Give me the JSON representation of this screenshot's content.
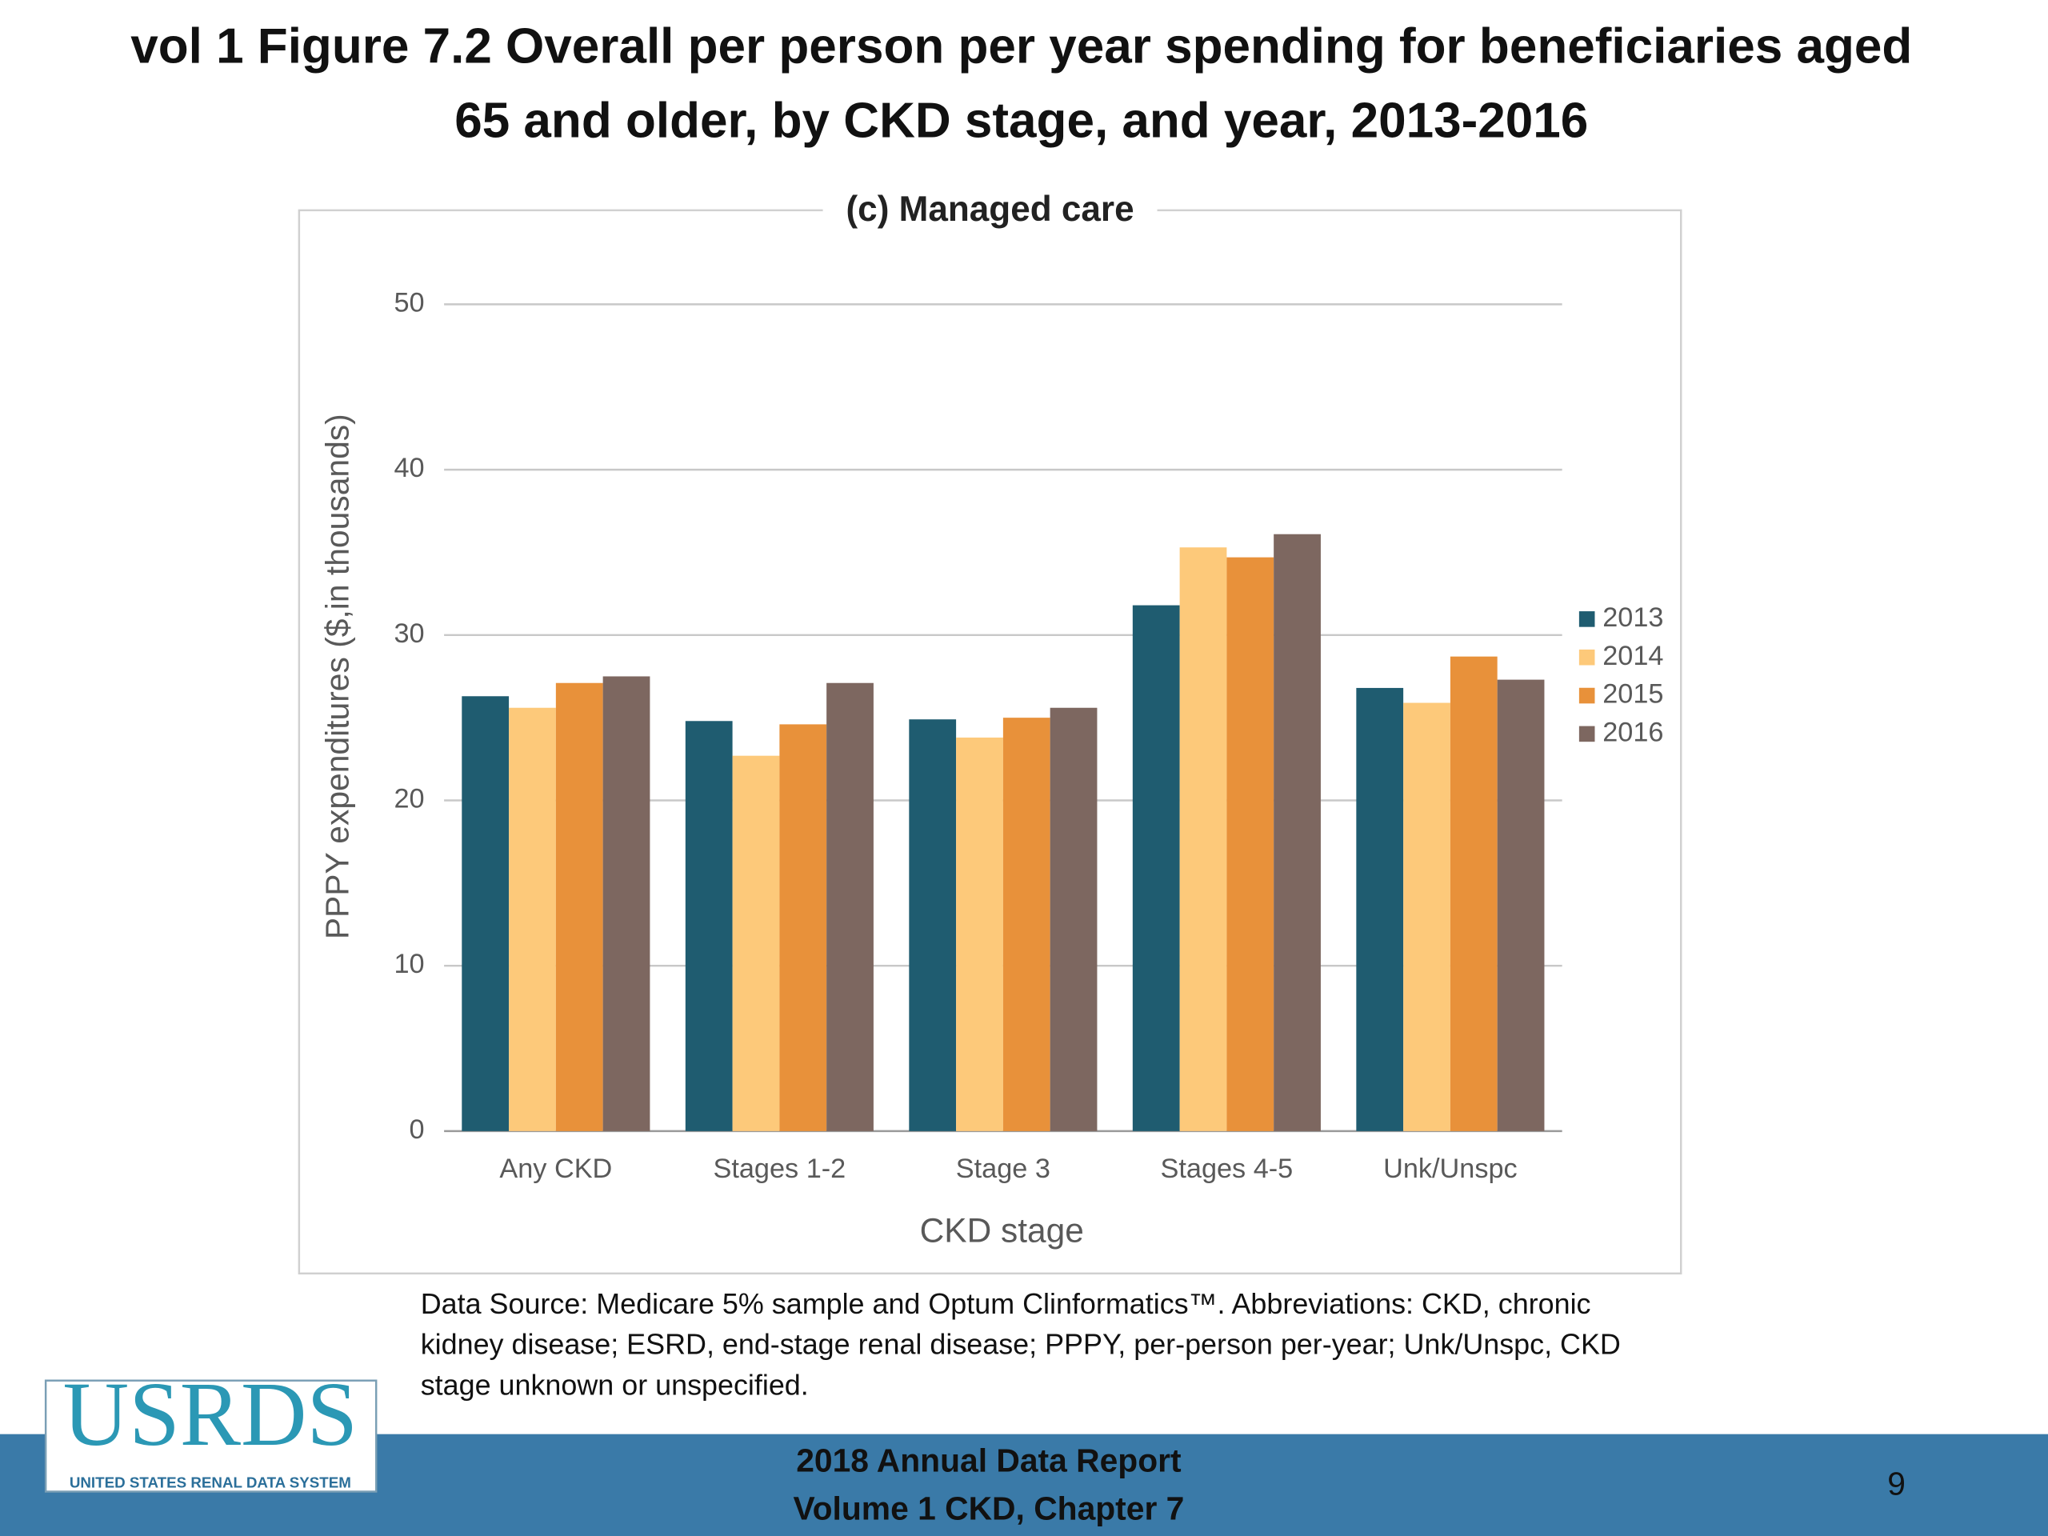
{
  "slide": {
    "title_lines": [
      "vol 1 Figure 7.2 Overall per person per year spending for beneficiaries aged",
      "65 and older, by CKD stage, and year, 2013-2016"
    ],
    "source_lines": [
      "Data Source: Medicare 5% sample and Optum Clinformatics™. Abbreviations: CKD, chronic",
      "kidney disease; ESRD, end-stage renal disease; PPPY, per-person per-year; Unk/Unspc, CKD",
      "stage unknown or unspecified."
    ],
    "logo": {
      "name": "USRDS",
      "tagline": "UNITED STATES RENAL DATA SYSTEM"
    },
    "footer_lines": [
      "2018 Annual Data Report",
      "Volume 1 CKD, Chapter 7"
    ],
    "page_number": "9"
  },
  "chart_data": {
    "type": "bar",
    "title": "(c) Managed care",
    "x_label": "CKD stage",
    "y_label": "PPPY expenditures ($,in thousands)",
    "categories": [
      "Any CKD",
      "Stages 1-2",
      "Stage 3",
      "Stages 4-5",
      "Unk/Unspc"
    ],
    "series": [
      {
        "name": "2013",
        "color": "#1f5c70",
        "values": [
          26.3,
          24.8,
          24.9,
          31.8,
          26.8
        ]
      },
      {
        "name": "2014",
        "color": "#fdc97a",
        "values": [
          25.6,
          22.7,
          23.8,
          35.3,
          25.9
        ]
      },
      {
        "name": "2015",
        "color": "#e8913a",
        "values": [
          27.1,
          24.6,
          25.0,
          34.7,
          28.7
        ]
      },
      {
        "name": "2016",
        "color": "#7d6760",
        "values": [
          27.5,
          27.1,
          25.6,
          36.1,
          27.3
        ]
      }
    ],
    "ylim": [
      0,
      50
    ],
    "yticks": [
      0,
      10,
      20,
      30,
      40,
      50
    ],
    "grid": true,
    "legend": "right"
  }
}
